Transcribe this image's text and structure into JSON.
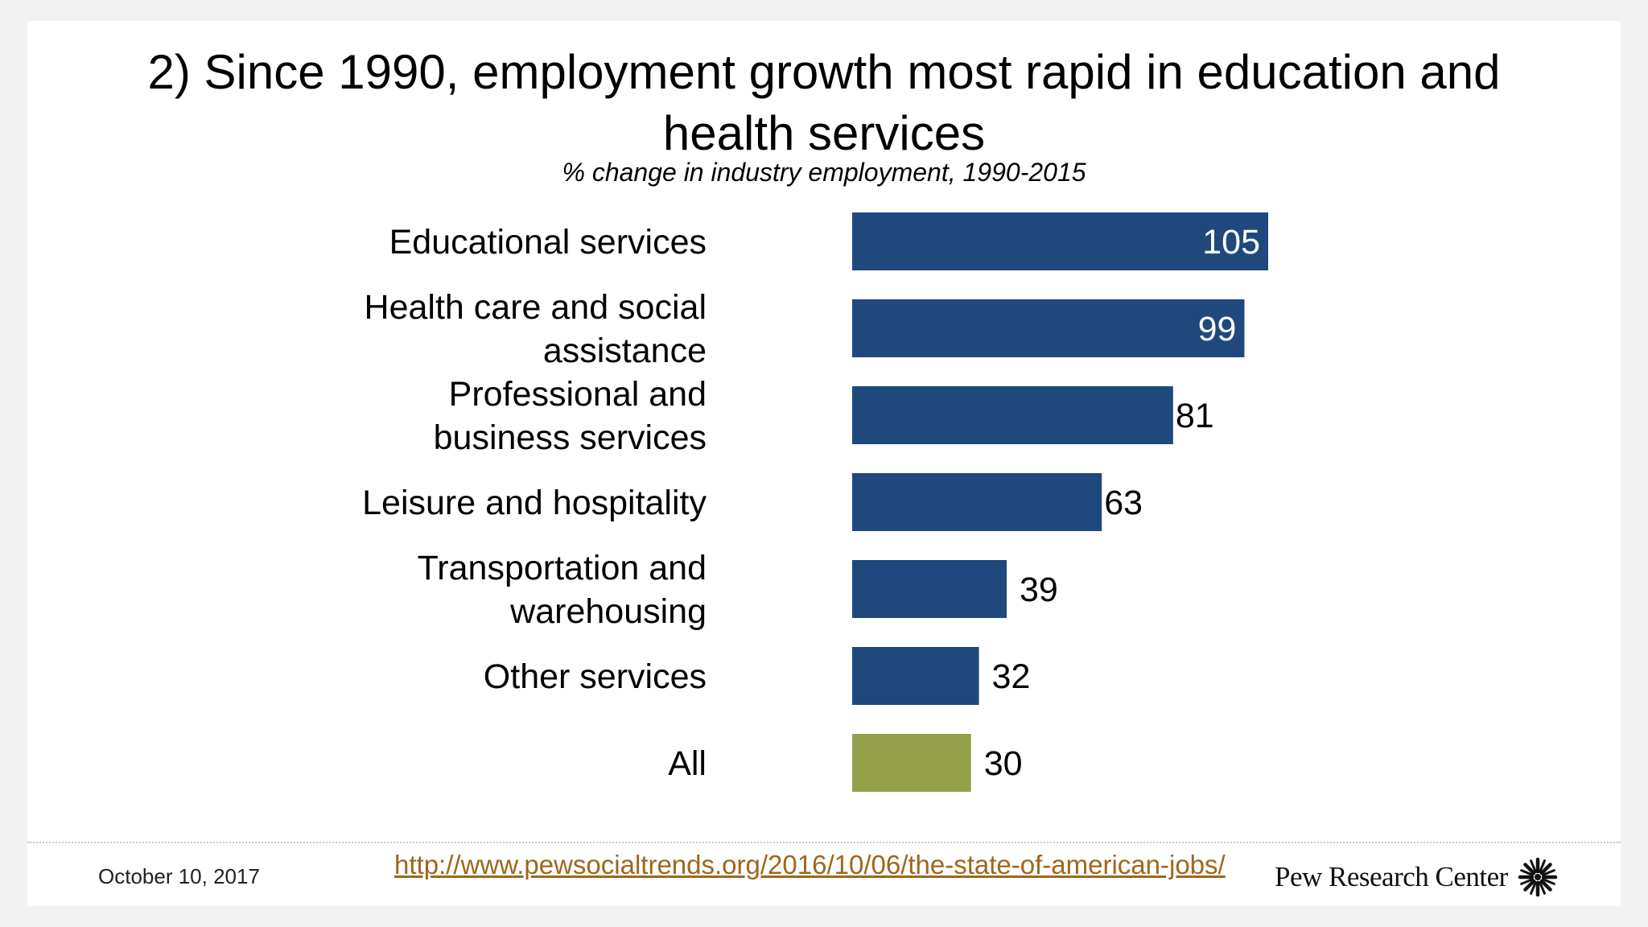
{
  "slide": {
    "title": "2) Since 1990, employment growth most rapid in education and health services",
    "subtitle": "% change in industry employment, 1990-2015"
  },
  "chart_data": {
    "type": "bar",
    "orientation": "horizontal",
    "categories": [
      [
        "Educational services"
      ],
      [
        "Health care and social",
        "assistance"
      ],
      [
        "Professional and",
        "business services"
      ],
      [
        "Leisure and hospitality"
      ],
      [
        "Transportation and",
        "warehousing"
      ],
      [
        "Other services"
      ],
      [
        "All"
      ]
    ],
    "values": [
      105,
      99,
      81,
      63,
      39,
      32,
      30
    ],
    "colors": [
      "#1f497d",
      "#1f497d",
      "#1f497d",
      "#1f497d",
      "#1f497d",
      "#1f497d",
      "#95a04a"
    ],
    "label_inside_bar": [
      true,
      true,
      false,
      false,
      false,
      false,
      false
    ],
    "xlim": [
      0,
      105
    ],
    "grid": false,
    "legend": "none"
  },
  "footer": {
    "date": "October 10, 2017",
    "url": "http://www.pewsocialtrends.org/2016/10/06/the-state-of-american-jobs/",
    "logo_text": "Pew Research Center",
    "logo_icon": "pew-sunburst-icon"
  }
}
